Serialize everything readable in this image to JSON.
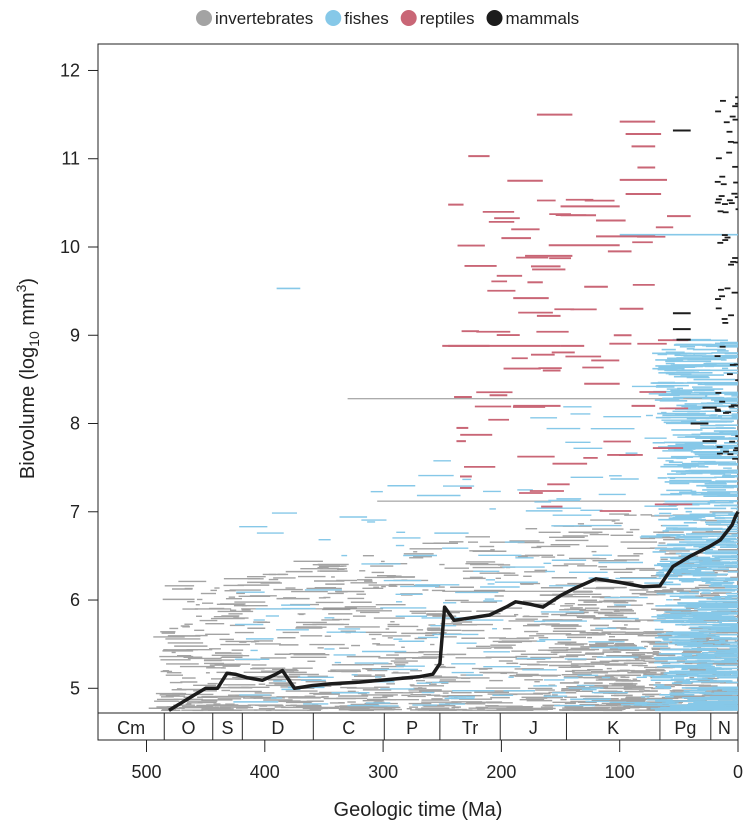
{
  "chart_data": {
    "type": "line",
    "legend": {
      "placement": "top",
      "entries": [
        {
          "label": "invertebrates",
          "color": "#a3a3a3"
        },
        {
          "label": "fishes",
          "color": "#86c8e8"
        },
        {
          "label": "reptiles",
          "color": "#c96676"
        },
        {
          "label": "mammals",
          "color": "#1c1c1c"
        }
      ]
    },
    "xlabel": "Geologic time (Ma)",
    "ylabel": {
      "main": "Biovolume (log",
      "sub": "10",
      "unit": " mm",
      "sup": "3",
      "close": ")"
    },
    "xlim": [
      541,
      0
    ],
    "ylim": [
      4.72,
      12.3
    ],
    "xticks": [
      500,
      400,
      300,
      200,
      100,
      0
    ],
    "yticks": [
      5,
      6,
      7,
      8,
      9,
      10,
      11,
      12
    ],
    "grid": false,
    "periods": [
      {
        "label": "Cm",
        "start": 541,
        "end": 485
      },
      {
        "label": "O",
        "start": 485,
        "end": 444
      },
      {
        "label": "S",
        "start": 444,
        "end": 419
      },
      {
        "label": "D",
        "start": 419,
        "end": 359
      },
      {
        "label": "C",
        "start": 359,
        "end": 299
      },
      {
        "label": "P",
        "start": 299,
        "end": 252
      },
      {
        "label": "Tr",
        "start": 252,
        "end": 201
      },
      {
        "label": "J",
        "start": 201,
        "end": 145
      },
      {
        "label": "K",
        "start": 145,
        "end": 66
      },
      {
        "label": "Pg",
        "start": 66,
        "end": 23
      },
      {
        "label": "N",
        "start": 23,
        "end": 0
      }
    ],
    "mean_series": {
      "name": "",
      "color": "#1c1c1c",
      "x": [
        481,
        460,
        450,
        440,
        432,
        425,
        415,
        402,
        392,
        385,
        375,
        360,
        345,
        320,
        295,
        270,
        258,
        252,
        248,
        240,
        225,
        210,
        196,
        188,
        175,
        165,
        150,
        140,
        130,
        120,
        100,
        80,
        66,
        55,
        40,
        25,
        15,
        5,
        2,
        0
      ],
      "y": [
        4.75,
        4.92,
        5.0,
        5.0,
        5.17,
        5.16,
        5.12,
        5.09,
        5.15,
        5.2,
        5.0,
        5.03,
        5.05,
        5.07,
        5.1,
        5.13,
        5.16,
        5.28,
        5.92,
        5.77,
        5.8,
        5.83,
        5.92,
        5.98,
        5.95,
        5.92,
        6.05,
        6.12,
        6.18,
        6.24,
        6.2,
        6.15,
        6.16,
        6.38,
        6.5,
        6.6,
        6.68,
        6.85,
        6.95,
        7.0
      ]
    }
  }
}
